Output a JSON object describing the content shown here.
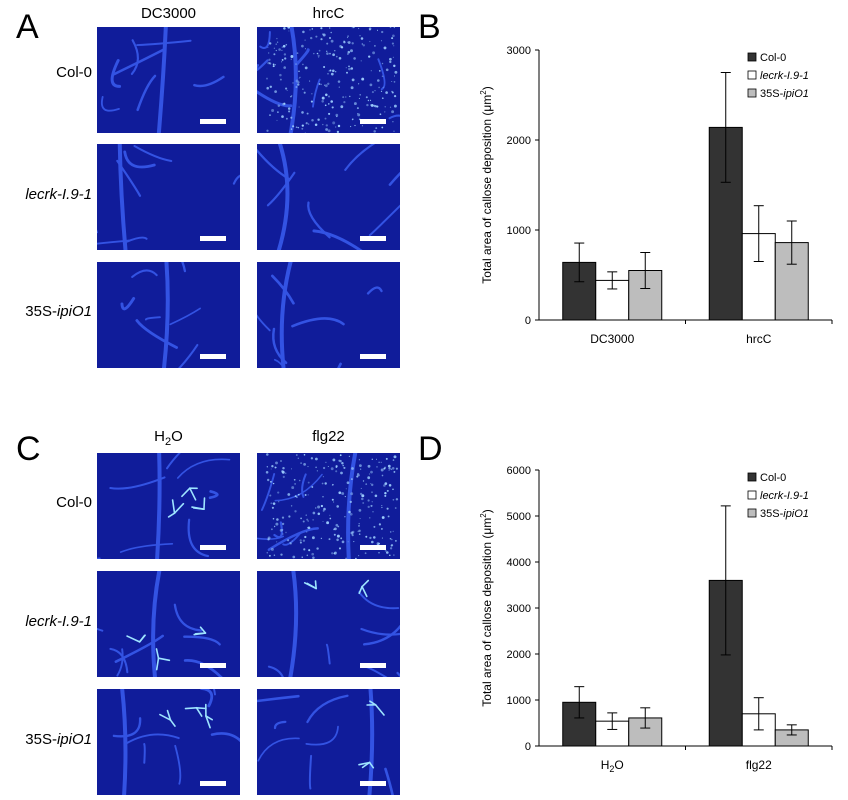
{
  "panels": {
    "A": {
      "letter": "A",
      "col_titles": [
        "DC3000",
        "hrcC"
      ],
      "row_labels": [
        {
          "pre": "Col-0",
          "ital": "",
          "post": ""
        },
        {
          "pre": "",
          "ital": "lecrk-I.9-1",
          "post": ""
        },
        {
          "pre": "35S-",
          "ital": "ipiO1",
          "post": ""
        }
      ]
    },
    "C": {
      "letter": "C",
      "col_titles": [
        {
          "pre": "H",
          "sub": "2",
          "post": "O"
        },
        {
          "pre": "flg22",
          "sub": "",
          "post": ""
        }
      ],
      "row_labels": [
        {
          "pre": "Col-0",
          "ital": "",
          "post": ""
        },
        {
          "pre": "",
          "ital": "lecrk-I.9-1",
          "post": ""
        },
        {
          "pre": "35S-",
          "ital": "ipiO1",
          "post": ""
        }
      ]
    }
  },
  "colors": {
    "micro_bg": "#101c9a",
    "vein": "#3a5df0",
    "scale_bar": "#ffffff",
    "col0": "#333333",
    "lecrk": "#ffffff",
    "ipio1": "#bdbdbd"
  },
  "chart_data": [
    {
      "panel": "B",
      "type": "bar",
      "ylabel": {
        "text": "Total area of callose deposition (μm",
        "sup": "2",
        "close": ")"
      },
      "categories": [
        {
          "pre": "DC3000",
          "sub": "",
          "post": ""
        },
        {
          "pre": "hrcC",
          "sub": "",
          "post": ""
        }
      ],
      "ylim": [
        0,
        3000
      ],
      "yticks": [
        0,
        1000,
        2000,
        3000
      ],
      "legend_position": "top-right",
      "series": [
        {
          "name": {
            "pre": "Col-0",
            "ital": "",
            "post": ""
          },
          "color": "#333333",
          "values": [
            640,
            2140
          ],
          "errors": [
            215,
            610
          ]
        },
        {
          "name": {
            "pre": "",
            "ital": "lecrk-I.9-1",
            "post": ""
          },
          "color": "#ffffff",
          "values": [
            440,
            960
          ],
          "errors": [
            95,
            310
          ]
        },
        {
          "name": {
            "pre": "35S-",
            "ital": "ipiO1",
            "post": ""
          },
          "color": "#bdbdbd",
          "values": [
            550,
            860
          ],
          "errors": [
            200,
            240
          ]
        }
      ]
    },
    {
      "panel": "D",
      "type": "bar",
      "ylabel": {
        "text": "Total area of callose deposition (μm",
        "sup": "2",
        "close": ")"
      },
      "categories": [
        {
          "pre": "H",
          "sub": "2",
          "post": "O"
        },
        {
          "pre": "flg22",
          "sub": "",
          "post": ""
        }
      ],
      "ylim": [
        0,
        6000
      ],
      "yticks": [
        0,
        1000,
        2000,
        3000,
        4000,
        5000,
        6000
      ],
      "legend_position": "top-right",
      "series": [
        {
          "name": {
            "pre": "Col-0",
            "ital": "",
            "post": ""
          },
          "color": "#333333",
          "values": [
            950,
            3600
          ],
          "errors": [
            340,
            1620
          ]
        },
        {
          "name": {
            "pre": "",
            "ital": "lecrk-I.9-1",
            "post": ""
          },
          "color": "#ffffff",
          "values": [
            540,
            700
          ],
          "errors": [
            180,
            350
          ]
        },
        {
          "name": {
            "pre": "35S-",
            "ital": "ipiO1",
            "post": ""
          },
          "color": "#bdbdbd",
          "values": [
            610,
            350
          ],
          "errors": [
            220,
            110
          ]
        }
      ]
    }
  ],
  "panel_letters": {
    "B": "B",
    "D": "D"
  }
}
